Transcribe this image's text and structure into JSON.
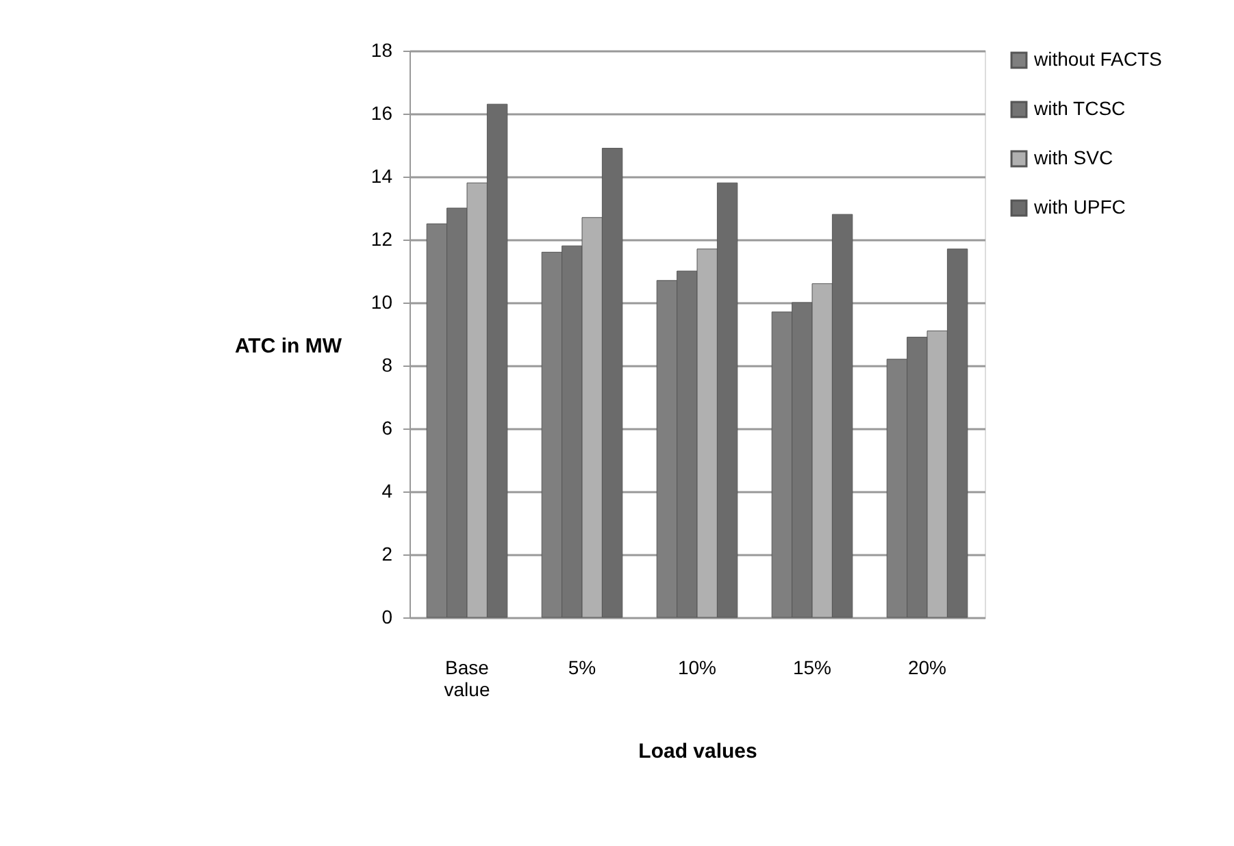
{
  "chart_data": {
    "type": "bar",
    "xlabel": "Load values",
    "ylabel": "ATC in MW",
    "categories": [
      "Base value",
      "5%",
      "10%",
      "15%",
      "20%"
    ],
    "series": [
      {
        "name": "without FACTS",
        "color": "#7f7f7f",
        "values": [
          12.5,
          11.6,
          10.7,
          9.7,
          8.2
        ]
      },
      {
        "name": "with TCSC",
        "color": "#737373",
        "values": [
          13.0,
          11.8,
          11.0,
          10.0,
          8.9
        ]
      },
      {
        "name": "with SVC",
        "color": "#b0b0b0",
        "values": [
          13.8,
          12.7,
          11.7,
          10.6,
          9.1
        ]
      },
      {
        "name": "with UPFC",
        "color": "#6b6b6b",
        "values": [
          16.3,
          14.9,
          13.8,
          12.8,
          11.7
        ]
      }
    ],
    "ylim": [
      0,
      18
    ],
    "yticks": [
      0,
      2,
      4,
      6,
      8,
      10,
      12,
      14,
      16,
      18
    ],
    "grid": "y",
    "legend": "right"
  }
}
